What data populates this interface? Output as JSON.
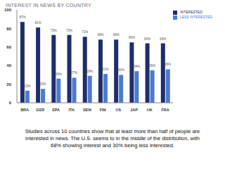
{
  "chart_data": {
    "type": "bar",
    "title": "INTEREST IN NEWS BY COUNTRY",
    "categories": [
      "BRA",
      "GER",
      "SPA",
      "ITA",
      "DEN",
      "FIN",
      "US",
      "JAP",
      "UK",
      "FRA"
    ],
    "series": [
      {
        "name": "INTERESTED",
        "color": "#1e2d6b",
        "values": [
          87,
          81,
          73,
          73,
          71,
          68,
          68,
          65,
          64,
          64
        ],
        "value_labels": [
          "87%",
          "81%",
          "73%",
          "73%",
          "71%",
          "68%",
          "68%",
          "65%",
          "64%",
          "64%"
        ]
      },
      {
        "name": "LESS INTERESTED",
        "color": "#4a7bd0",
        "values": [
          13,
          15,
          26,
          27,
          29,
          31,
          30,
          34,
          35,
          36
        ],
        "value_labels": [
          "13%",
          "15%",
          "26%",
          "27%",
          "29%",
          "31%",
          "30%",
          "34%",
          "35%",
          "36%"
        ]
      }
    ],
    "ylim": [
      0,
      100
    ],
    "yticks": [
      0,
      20,
      40,
      60,
      80,
      100
    ],
    "grid": false,
    "legend": "upper right",
    "data_labels": true,
    "caption": "Studies across 10 countries show that at least more than half of people are interested in news. The U.S. seems to in the middle of the distribution, with 68% showing interest and 30% being less interested."
  }
}
